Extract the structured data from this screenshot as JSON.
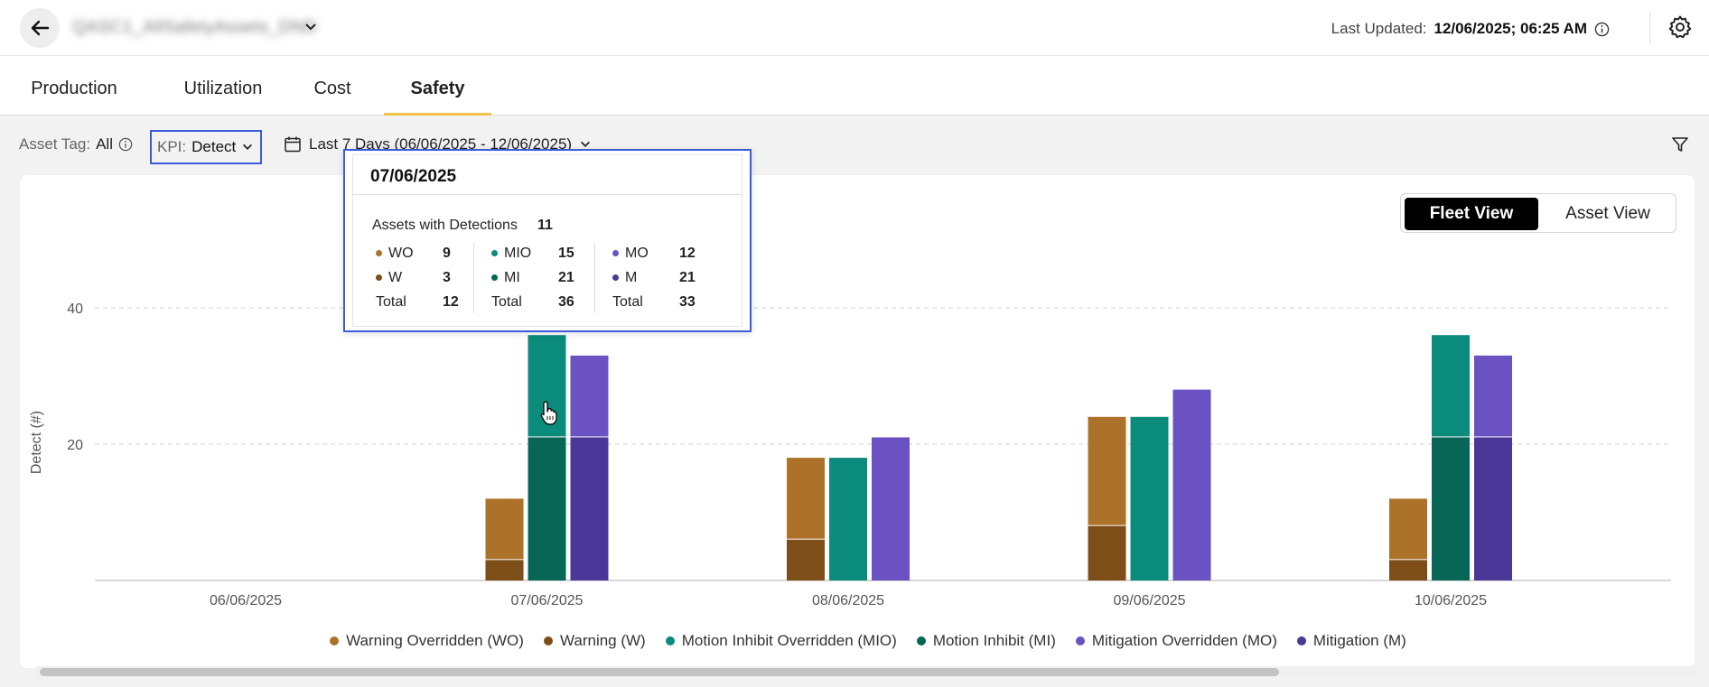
{
  "header": {
    "site_name": "QASC1_AllSafetyAssets_DND",
    "last_updated_label": "Last Updated:",
    "last_updated_value": "12/06/2025; 06:25 AM"
  },
  "tabs": [
    {
      "label": "Production",
      "active": false
    },
    {
      "label": "Utilization",
      "active": false
    },
    {
      "label": "Cost",
      "active": false
    },
    {
      "label": "Safety",
      "active": true
    }
  ],
  "filters": {
    "asset_tag_label": "Asset Tag:",
    "asset_tag_value": "All",
    "kpi_label": "KPI:",
    "kpi_value": "Detect",
    "date_range": "Last 7 Days (06/06/2025 - 12/06/2025)"
  },
  "view_toggle": {
    "fleet": "Fleet View",
    "asset": "Asset View",
    "selected": "fleet"
  },
  "colors": {
    "WO": "#ad7229",
    "W": "#7d4e17",
    "MIO": "#0b8b7b",
    "MI": "#076656",
    "MO": "#6b52c2",
    "M": "#4a3797",
    "accent": "#f4c34e",
    "highlight": "#3c5bdc"
  },
  "chart_data": {
    "type": "bar",
    "ylabel": "Detect (#)",
    "ylim": [
      0,
      40
    ],
    "yticks": [
      20,
      40
    ],
    "categories": [
      "06/06/2025",
      "07/06/2025",
      "08/06/2025",
      "09/06/2025",
      "10/06/2025"
    ],
    "stacks": [
      {
        "name": "Warning",
        "lower": "W",
        "upper": "WO"
      },
      {
        "name": "Motion Inhibit",
        "lower": "MI",
        "upper": "MIO"
      },
      {
        "name": "Mitigation",
        "lower": "M",
        "upper": "MO"
      }
    ],
    "series": [
      {
        "key": "WO",
        "name": "Warning Overridden (WO)",
        "values": [
          0,
          9,
          12,
          16,
          9
        ]
      },
      {
        "key": "W",
        "name": "Warning (W)",
        "values": [
          0,
          3,
          6,
          8,
          3
        ]
      },
      {
        "key": "MIO",
        "name": "Motion Inhibit Overridden (MIO)",
        "values": [
          0,
          15,
          18,
          24,
          15
        ]
      },
      {
        "key": "MI",
        "name": "Motion Inhibit (MI)",
        "values": [
          0,
          21,
          0,
          0,
          21
        ]
      },
      {
        "key": "MO",
        "name": "Mitigation Overridden (MO)",
        "values": [
          0,
          12,
          21,
          28,
          12
        ]
      },
      {
        "key": "M",
        "name": "Mitigation (M)",
        "values": [
          0,
          21,
          0,
          0,
          21
        ]
      }
    ],
    "legend_position": "bottom"
  },
  "tooltip": {
    "date": "07/06/2025",
    "assets_label": "Assets with Detections",
    "assets_value": "11",
    "groups": [
      {
        "rows": [
          {
            "label": "WO",
            "value": "9",
            "color": "#ad7229"
          },
          {
            "label": "W",
            "value": "3",
            "color": "#7d4e17"
          },
          {
            "label": "Total",
            "value": "12",
            "color": ""
          }
        ]
      },
      {
        "rows": [
          {
            "label": "MIO",
            "value": "15",
            "color": "#0b8b7b"
          },
          {
            "label": "MI",
            "value": "21",
            "color": "#076656"
          },
          {
            "label": "Total",
            "value": "36",
            "color": ""
          }
        ]
      },
      {
        "rows": [
          {
            "label": "MO",
            "value": "12",
            "color": "#6b52c2"
          },
          {
            "label": "M",
            "value": "21",
            "color": "#4a3797"
          },
          {
            "label": "Total",
            "value": "33",
            "color": ""
          }
        ]
      }
    ]
  }
}
